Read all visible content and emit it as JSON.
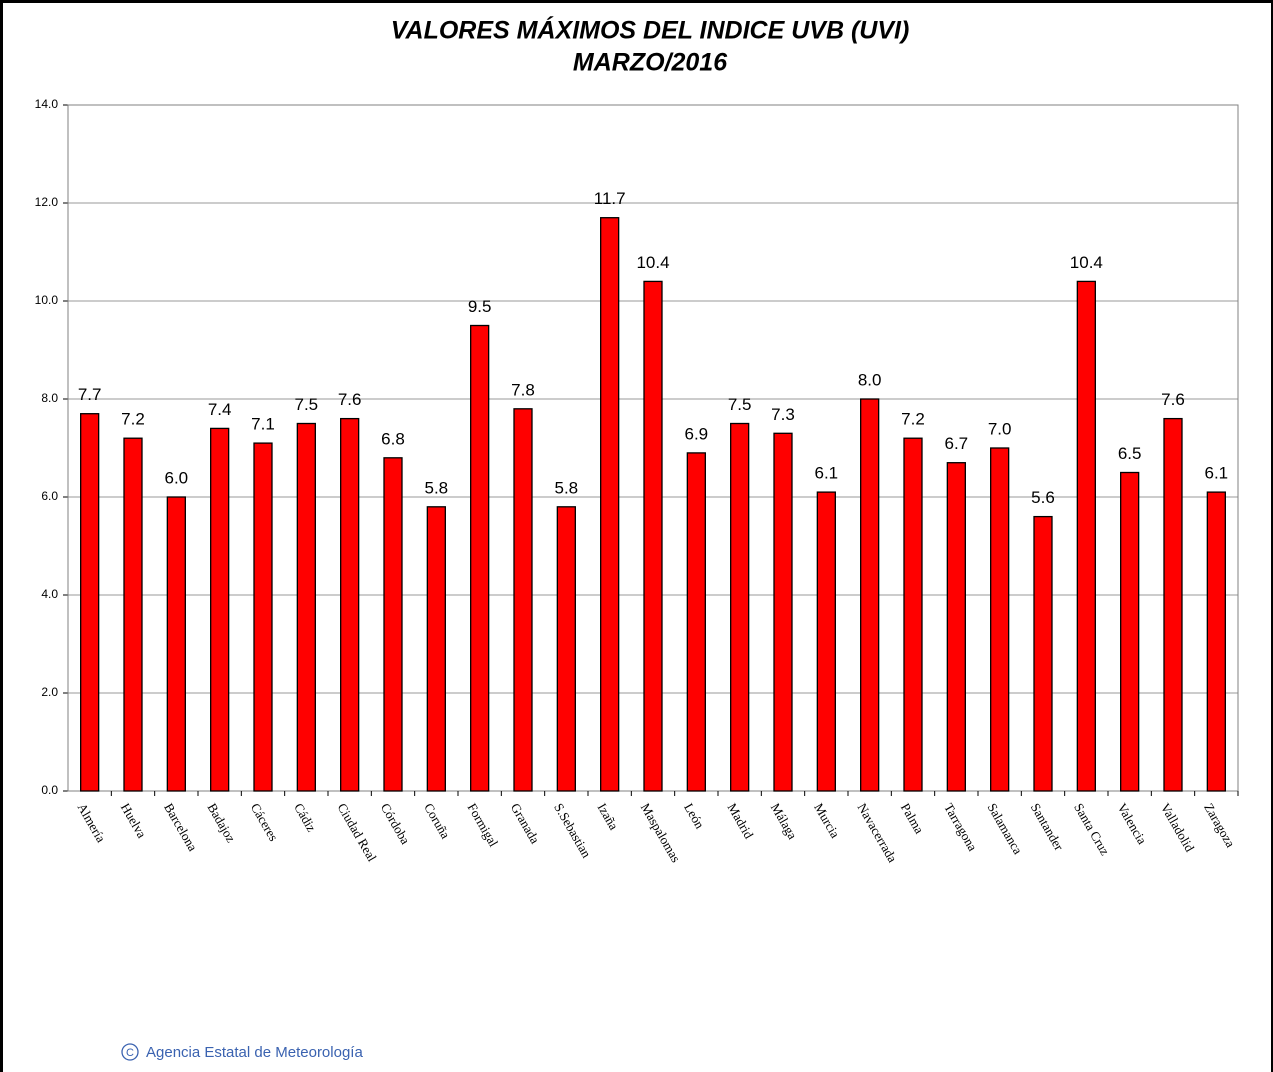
{
  "chart_data": {
    "type": "bar",
    "title": "VALORES MÁXIMOS DEL INDICE UVB (UVI)",
    "subtitle": "MARZO/2016",
    "categories": [
      "Almería",
      "Huelva",
      "Barcelona",
      "Badajoz",
      "Cáceres",
      "Cádiz",
      "Ciudad Real",
      "Córdoba",
      "Coruña",
      "Formigal",
      "Granada",
      "S.Sebastian",
      "Izaña",
      "Maspalomas",
      "León",
      "Madrid",
      "Málaga",
      "Murcia",
      "Navacerrada",
      "Palma",
      "Tarragona",
      "Salamanca",
      "Santander",
      "Santa Cruz",
      "Valencia",
      "Valladolid",
      "Zaragoza"
    ],
    "values": [
      7.7,
      7.2,
      6.0,
      7.4,
      7.1,
      7.5,
      7.6,
      6.8,
      5.8,
      9.5,
      7.8,
      5.8,
      11.7,
      10.4,
      6.9,
      7.5,
      7.3,
      6.1,
      8.0,
      7.2,
      6.7,
      7.0,
      5.6,
      10.4,
      6.5,
      7.6,
      6.1
    ],
    "value_labels": [
      "7.7",
      "7.2",
      "6.0",
      "7.4",
      "7.1",
      "7.5",
      "7.6",
      "6.8",
      "5.8",
      "9.5",
      "7.8",
      "5.8",
      "11.7",
      "10.4",
      "6.9",
      "7.5",
      "7.3",
      "6.1",
      "8.0",
      "7.2",
      "6.7",
      "7.0",
      "5.6",
      "10.4",
      "6.5",
      "7.6",
      "6.1"
    ],
    "color": "#ff0000",
    "ylim": [
      0,
      14
    ],
    "yticks": [
      {
        "value": 0,
        "label": "0.0"
      },
      {
        "value": 2,
        "label": "2.0"
      },
      {
        "value": 4,
        "label": "4.0"
      },
      {
        "value": 6,
        "label": "6.0"
      },
      {
        "value": 8,
        "label": "8.0"
      },
      {
        "value": 10,
        "label": "10.0"
      },
      {
        "value": 12,
        "label": "12.0"
      },
      {
        "value": 14,
        "label": "14.0"
      }
    ],
    "grid": true,
    "credit": "Agencia Estatal de Meteorología"
  }
}
